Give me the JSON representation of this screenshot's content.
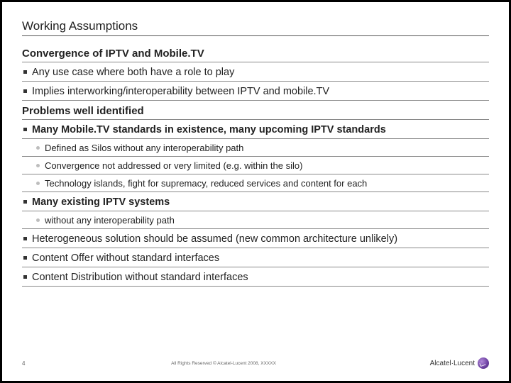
{
  "title": "Working Assumptions",
  "sections": [
    {
      "type": "subheading",
      "text": "Convergence of IPTV and Mobile.TV"
    },
    {
      "type": "lvl1",
      "text": "Any use case where both have a role to play"
    },
    {
      "type": "lvl1",
      "text": "Implies interworking/interoperability between IPTV and mobile.TV"
    },
    {
      "type": "subheading",
      "text": "Problems well identified"
    },
    {
      "type": "lvl1-bold",
      "text": "Many Mobile.TV standards in existence, many upcoming IPTV standards"
    },
    {
      "type": "lvl2",
      "text": "Defined as Silos without any interoperability path"
    },
    {
      "type": "lvl2",
      "text": "Convergence not addressed or very limited (e.g. within the silo)"
    },
    {
      "type": "lvl2",
      "text": "Technology islands, fight for supremacy, reduced services and content for each"
    },
    {
      "type": "lvl1-bold",
      "text": "Many existing IPTV systems"
    },
    {
      "type": "lvl2",
      "text": "without any interoperability path"
    },
    {
      "type": "lvl1-arial",
      "text": "Heterogeneous solution should be assumed (new common architecture unlikely)"
    },
    {
      "type": "lvl1-arial",
      "text": " Content Offer without standard interfaces"
    },
    {
      "type": "lvl1-arial",
      "text": "Content Distribution without standard interfaces"
    }
  ],
  "footer": {
    "page": "4",
    "copyright": "All Rights Reserved © Alcatel-Lucent 2008, XXXXX",
    "brand": "Alcatel·Lucent"
  },
  "colors": {
    "bullet_square": "#333333",
    "bullet_dot": "#bdbdbd",
    "rule": "#888888",
    "brand_purple": "#6b3fa0"
  }
}
